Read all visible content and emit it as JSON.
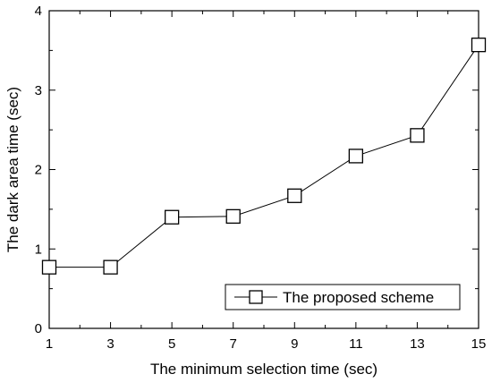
{
  "chart_data": {
    "type": "line",
    "title": "",
    "xlabel": "The minimum selection time (sec)",
    "ylabel": "The dark area time (sec)",
    "xlim": [
      1,
      15
    ],
    "ylim": [
      0,
      4
    ],
    "xticks": [
      "1",
      "3",
      "5",
      "7",
      "9",
      "11",
      "13",
      "15"
    ],
    "yticks": [
      "0",
      "1",
      "2",
      "3",
      "4"
    ],
    "grid": false,
    "legend_position": "bottom-right",
    "series": [
      {
        "name": "The proposed scheme",
        "marker": "open-square",
        "color": "#000000",
        "x": [
          1,
          3,
          5,
          7,
          9,
          11,
          13,
          15
        ],
        "y": [
          0.77,
          0.77,
          1.4,
          1.41,
          1.67,
          2.17,
          2.43,
          3.57
        ]
      }
    ]
  }
}
